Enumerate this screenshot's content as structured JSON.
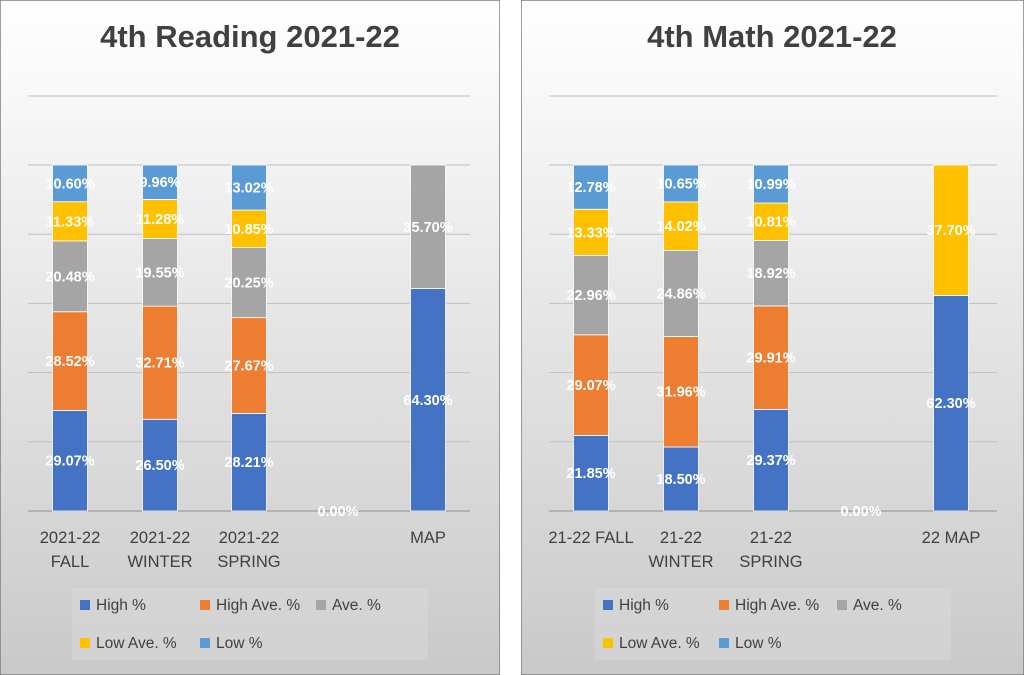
{
  "colors": {
    "high": "#4472C4",
    "high_ave": "#ED7D31",
    "ave": "#A5A5A5",
    "low_ave": "#FFC000",
    "low": "#5B9BD5",
    "gridline": "#bfbfbf",
    "axis_text": "#404040",
    "title_text": "#404040",
    "panel_bg_top": "#ffffff",
    "panel_bg_bottom": "#c9c9c9"
  },
  "chart_data": [
    {
      "type": "bar",
      "stacked": true,
      "title": "4th Reading 2021-22",
      "categories": [
        [
          "2021-22",
          "FALL"
        ],
        [
          "2021-22",
          "WINTER"
        ],
        [
          "2021-22",
          "SPRING"
        ],
        [
          ""
        ],
        [
          "MAP"
        ]
      ],
      "series": [
        {
          "name": "High %",
          "color_key": "high",
          "values": [
            29.07,
            26.5,
            28.21,
            0.0,
            64.3
          ]
        },
        {
          "name": "High Ave. %",
          "color_key": "high_ave",
          "values": [
            28.52,
            32.71,
            27.67,
            null,
            null
          ]
        },
        {
          "name": "Ave. %",
          "color_key": "ave",
          "values": [
            20.48,
            19.55,
            20.25,
            null,
            35.7
          ]
        },
        {
          "name": "Low Ave. %",
          "color_key": "low_ave",
          "values": [
            11.33,
            11.28,
            10.85,
            null,
            null
          ]
        },
        {
          "name": "Low %",
          "color_key": "low",
          "values": [
            10.6,
            9.96,
            13.02,
            null,
            null
          ]
        }
      ],
      "labels": [
        [
          "29.07%",
          "28.52%",
          "20.48%",
          "11.33%",
          "10.60%"
        ],
        [
          "26.50%",
          "32.71%",
          "19.55%",
          "11.28%",
          "9.96%"
        ],
        [
          "28.21%",
          "27.67%",
          "20.25%",
          "10.85%",
          "13.02%"
        ],
        [
          "0.00%",
          "",
          "",
          "",
          ""
        ],
        [
          "64.30%",
          "",
          "35.70%",
          "",
          ""
        ]
      ],
      "ylim": [
        0,
        100
      ],
      "grid": true,
      "legend": {
        "position": "bottom",
        "rows": [
          [
            "High %",
            "High Ave. %",
            "Ave. %"
          ],
          [
            "Low Ave. %",
            "Low %"
          ]
        ]
      }
    },
    {
      "type": "bar",
      "stacked": true,
      "title": "4th Math 2021-22",
      "categories": [
        [
          "21-22 FALL"
        ],
        [
          "21-22",
          "WINTER"
        ],
        [
          "21-22",
          "SPRING"
        ],
        [
          ""
        ],
        [
          "22 MAP"
        ]
      ],
      "series": [
        {
          "name": "High %",
          "color_key": "high",
          "values": [
            21.85,
            18.5,
            29.37,
            0.0,
            62.3
          ]
        },
        {
          "name": "High Ave. %",
          "color_key": "high_ave",
          "values": [
            29.07,
            31.96,
            29.91,
            null,
            null
          ]
        },
        {
          "name": "Ave. %",
          "color_key": "ave",
          "values": [
            22.96,
            24.86,
            18.92,
            null,
            null
          ]
        },
        {
          "name": "Low Ave. %",
          "color_key": "low_ave",
          "values": [
            13.33,
            14.02,
            10.81,
            null,
            37.7
          ]
        },
        {
          "name": "Low %",
          "color_key": "low",
          "values": [
            12.78,
            10.65,
            10.99,
            null,
            null
          ]
        }
      ],
      "labels": [
        [
          "21.85%",
          "29.07%",
          "22.96%",
          "13.33%",
          "12.78%"
        ],
        [
          "18.50%",
          "31.96%",
          "24.86%",
          "14.02%",
          "10.65%"
        ],
        [
          "29.37%",
          "29.91%",
          "18.92%",
          "10.81%",
          "10.99%"
        ],
        [
          "0.00%",
          "",
          "",
          "",
          ""
        ],
        [
          "62.30%",
          "",
          "",
          "37.70%",
          ""
        ]
      ],
      "ylim": [
        0,
        100
      ],
      "grid": true,
      "legend": {
        "position": "bottom",
        "rows": [
          [
            "High %",
            "High Ave. %",
            "Ave. %"
          ],
          [
            "Low Ave. %",
            "Low %"
          ]
        ]
      }
    }
  ]
}
